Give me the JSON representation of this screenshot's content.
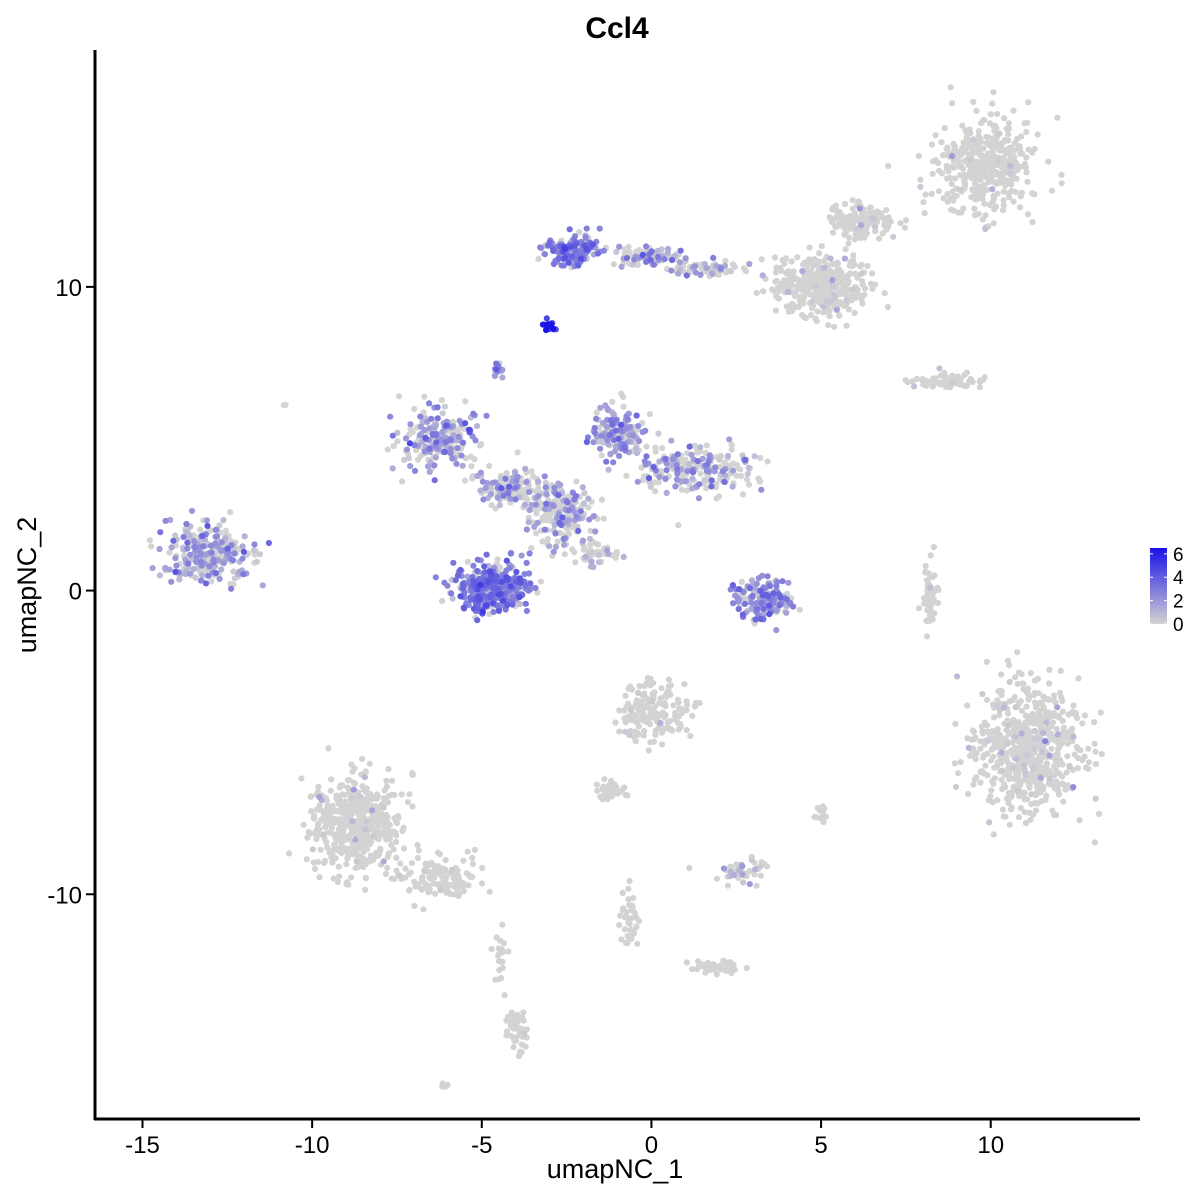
{
  "chart_data": {
    "type": "scatter",
    "title": "Ccl4",
    "xlabel": "umapNC_1",
    "ylabel": "umapNC_2",
    "xlim": [
      -16.4,
      14.4
    ],
    "ylim": [
      -17.4,
      17.8
    ],
    "x_ticks": [
      {
        "value": -15,
        "label": "-15"
      },
      {
        "value": -10,
        "label": "-10"
      },
      {
        "value": -5,
        "label": "-5"
      },
      {
        "value": 0,
        "label": "0"
      },
      {
        "value": 5,
        "label": "5"
      },
      {
        "value": 10,
        "label": "10"
      }
    ],
    "y_ticks": [
      {
        "value": -10,
        "label": "-10"
      },
      {
        "value": 0,
        "label": "0"
      },
      {
        "value": 10,
        "label": "10"
      }
    ],
    "grid": false,
    "legend_position": "right",
    "color_scale": {
      "low_color": "#d3d3d3",
      "high_color": "#1a12e6",
      "min": 0,
      "max": 6.5,
      "ticks": [
        {
          "value": 0,
          "label": "0"
        },
        {
          "value": 2,
          "label": "2"
        },
        {
          "value": 4,
          "label": "4"
        },
        {
          "value": 6,
          "label": "6"
        }
      ]
    },
    "clusters": [
      {
        "center": [
          9.8,
          14.0
        ],
        "spread": [
          1.4,
          1.4
        ],
        "points": 400,
        "expr_mean": 0.1,
        "expr_frac": 0.03
      },
      {
        "center": [
          5.0,
          10.0
        ],
        "spread": [
          1.3,
          0.9
        ],
        "points": 350,
        "expr_mean": 0.2,
        "expr_frac": 0.06
      },
      {
        "center": [
          6.2,
          12.2
        ],
        "spread": [
          0.9,
          0.5
        ],
        "points": 150,
        "expr_mean": 0.2,
        "expr_frac": 0.05
      },
      {
        "center": [
          -2.3,
          11.2
        ],
        "spread": [
          0.7,
          0.45
        ],
        "points": 160,
        "expr_mean": 2.6,
        "expr_frac": 0.85
      },
      {
        "center": [
          -0.2,
          11.0
        ],
        "spread": [
          1.0,
          0.25
        ],
        "points": 90,
        "expr_mean": 1.8,
        "expr_frac": 0.5
      },
      {
        "center": [
          1.6,
          10.6
        ],
        "spread": [
          1.0,
          0.25
        ],
        "points": 70,
        "expr_mean": 1.4,
        "expr_frac": 0.35
      },
      {
        "center": [
          -3.0,
          8.7
        ],
        "spread": [
          0.15,
          0.15
        ],
        "points": 18,
        "expr_mean": 6.0,
        "expr_frac": 1.0
      },
      {
        "center": [
          -4.5,
          7.3
        ],
        "spread": [
          0.15,
          0.2
        ],
        "points": 14,
        "expr_mean": 2.5,
        "expr_frac": 0.9
      },
      {
        "center": [
          8.8,
          6.9
        ],
        "spread": [
          1.0,
          0.2
        ],
        "points": 70,
        "expr_mean": 0.05,
        "expr_frac": 0.02
      },
      {
        "center": [
          -13.1,
          1.2
        ],
        "spread": [
          1.1,
          0.9
        ],
        "points": 260,
        "expr_mean": 1.6,
        "expr_frac": 0.55
      },
      {
        "center": [
          -6.3,
          5.0
        ],
        "spread": [
          1.0,
          0.9
        ],
        "points": 200,
        "expr_mean": 2.0,
        "expr_frac": 0.6
      },
      {
        "center": [
          -4.2,
          3.4
        ],
        "spread": [
          0.8,
          0.5
        ],
        "points": 120,
        "expr_mean": 1.6,
        "expr_frac": 0.45
      },
      {
        "center": [
          -1.0,
          5.2
        ],
        "spread": [
          0.7,
          0.8
        ],
        "points": 150,
        "expr_mean": 1.9,
        "expr_frac": 0.55
      },
      {
        "center": [
          1.3,
          4.0
        ],
        "spread": [
          1.6,
          0.7
        ],
        "points": 230,
        "expr_mean": 1.6,
        "expr_frac": 0.45
      },
      {
        "center": [
          -2.7,
          2.6
        ],
        "spread": [
          0.9,
          1.0
        ],
        "points": 200,
        "expr_mean": 1.5,
        "expr_frac": 0.4
      },
      {
        "center": [
          -4.7,
          0.1
        ],
        "spread": [
          1.0,
          0.7
        ],
        "points": 360,
        "expr_mean": 2.7,
        "expr_frac": 0.85
      },
      {
        "center": [
          -1.6,
          1.2
        ],
        "spread": [
          0.6,
          0.4
        ],
        "points": 40,
        "expr_mean": 1.0,
        "expr_frac": 0.3
      },
      {
        "center": [
          3.4,
          -0.3
        ],
        "spread": [
          0.8,
          0.6
        ],
        "points": 160,
        "expr_mean": 2.2,
        "expr_frac": 0.7
      },
      {
        "center": [
          8.2,
          -0.1
        ],
        "spread": [
          0.2,
          1.0
        ],
        "points": 50,
        "expr_mean": 0.05,
        "expr_frac": 0.02
      },
      {
        "center": [
          11.1,
          -5.3
        ],
        "spread": [
          1.4,
          1.8
        ],
        "points": 650,
        "expr_mean": 0.35,
        "expr_frac": 0.07
      },
      {
        "center": [
          0.1,
          -4.0
        ],
        "spread": [
          0.9,
          0.9
        ],
        "points": 160,
        "expr_mean": 0.25,
        "expr_frac": 0.08
      },
      {
        "center": [
          -1.2,
          -6.6
        ],
        "spread": [
          0.4,
          0.3
        ],
        "points": 40,
        "expr_mean": 0.4,
        "expr_frac": 0.1
      },
      {
        "center": [
          2.7,
          -9.3
        ],
        "spread": [
          0.6,
          0.4
        ],
        "points": 50,
        "expr_mean": 1.0,
        "expr_frac": 0.2
      },
      {
        "center": [
          5.0,
          -7.3
        ],
        "spread": [
          0.2,
          0.3
        ],
        "points": 12,
        "expr_mean": 0.05,
        "expr_frac": 0.02
      },
      {
        "center": [
          -8.7,
          -7.7
        ],
        "spread": [
          1.2,
          1.5
        ],
        "points": 480,
        "expr_mean": 0.08,
        "expr_frac": 0.03
      },
      {
        "center": [
          -6.2,
          -9.5
        ],
        "spread": [
          0.9,
          0.6
        ],
        "points": 120,
        "expr_mean": 0.15,
        "expr_frac": 0.04
      },
      {
        "center": [
          -4.0,
          -14.5
        ],
        "spread": [
          0.3,
          0.6
        ],
        "points": 40,
        "expr_mean": 0.05,
        "expr_frac": 0.02
      },
      {
        "center": [
          -4.4,
          -12.0
        ],
        "spread": [
          0.2,
          0.8
        ],
        "points": 20,
        "expr_mean": 0.0,
        "expr_frac": 0.0
      },
      {
        "center": [
          -0.7,
          -10.8
        ],
        "spread": [
          0.3,
          0.9
        ],
        "points": 40,
        "expr_mean": 0.0,
        "expr_frac": 0.0
      },
      {
        "center": [
          1.9,
          -12.4
        ],
        "spread": [
          0.9,
          0.2
        ],
        "points": 40,
        "expr_mean": 0.0,
        "expr_frac": 0.0
      },
      {
        "center": [
          -6.1,
          -16.3
        ],
        "spread": [
          0.1,
          0.08
        ],
        "points": 5,
        "expr_mean": 0.0,
        "expr_frac": 0.0
      },
      {
        "center": [
          -10.8,
          6.1
        ],
        "spread": [
          0.05,
          0.05
        ],
        "points": 2,
        "expr_mean": 0.0,
        "expr_frac": 0.0
      }
    ]
  }
}
